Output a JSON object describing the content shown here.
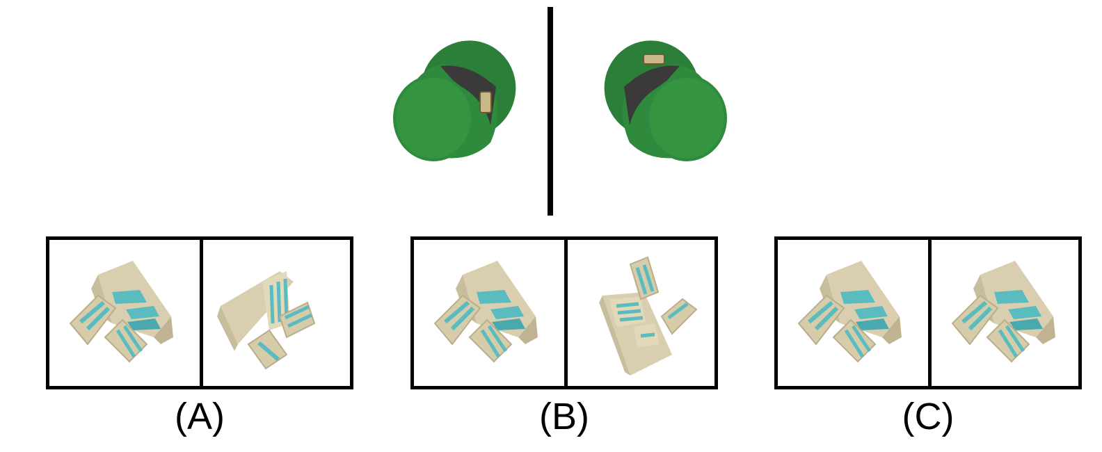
{
  "reference": {
    "left_object_icon": "green-top-hat-icon",
    "right_object_icon": "green-top-hat-mirrored-icon"
  },
  "options": [
    {
      "label": "(A)",
      "left_icon": "shelf-object-icon",
      "right_icon": "shelf-object-rotated-icon"
    },
    {
      "label": "(B)",
      "left_icon": "shelf-object-icon",
      "right_icon": "shelf-object-rotated-icon"
    },
    {
      "label": "(C)",
      "left_icon": "shelf-object-icon",
      "right_icon": "shelf-object-icon"
    }
  ],
  "colors": {
    "hat_green": "#2f8a3e",
    "hat_band": "#3a3a3a",
    "shelf_beige": "#d9cfb0",
    "shelf_teal": "#5bbcc0"
  }
}
